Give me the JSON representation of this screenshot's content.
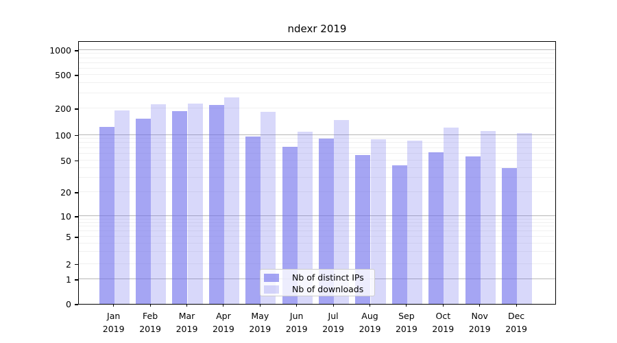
{
  "title": "ndexr 2019",
  "colors": {
    "bar_ips": "rgba(110,110,235,0.62)",
    "bar_downloads": "rgba(110,110,235,0.27)",
    "grid_major": "#b6b6b6",
    "grid_minor": "#f0f0f0",
    "axis": "#000000"
  },
  "legend": {
    "items": [
      {
        "label": "Nb of distinct IPs",
        "color_key": "bar_ips"
      },
      {
        "label": "Nb of downloads",
        "color_key": "bar_downloads"
      }
    ]
  },
  "chart_data": {
    "type": "bar",
    "title": "ndexr 2019",
    "categories": [
      "Jan 2019",
      "Feb 2019",
      "Mar 2019",
      "Apr 2019",
      "May 2019",
      "Jun 2019",
      "Jul 2019",
      "Aug 2019",
      "Sep 2019",
      "Oct 2019",
      "Nov 2019",
      "Dec 2019"
    ],
    "series": [
      {
        "name": "Nb of distinct IPs",
        "values": [
          124,
          154,
          187,
          218,
          96,
          72,
          90,
          58,
          43,
          62,
          55,
          40
        ]
      },
      {
        "name": "Nb of downloads",
        "values": [
          190,
          225,
          228,
          268,
          184,
          108,
          148,
          89,
          86,
          120,
          110,
          105
        ]
      }
    ],
    "xlabel": "",
    "ylabel": "",
    "yscale": "symlog",
    "yticks": [
      0,
      1,
      2,
      5,
      10,
      20,
      50,
      100,
      200,
      500,
      1000
    ],
    "ylim": [
      0,
      1300
    ],
    "grid": true,
    "legend_position": "lower center"
  }
}
